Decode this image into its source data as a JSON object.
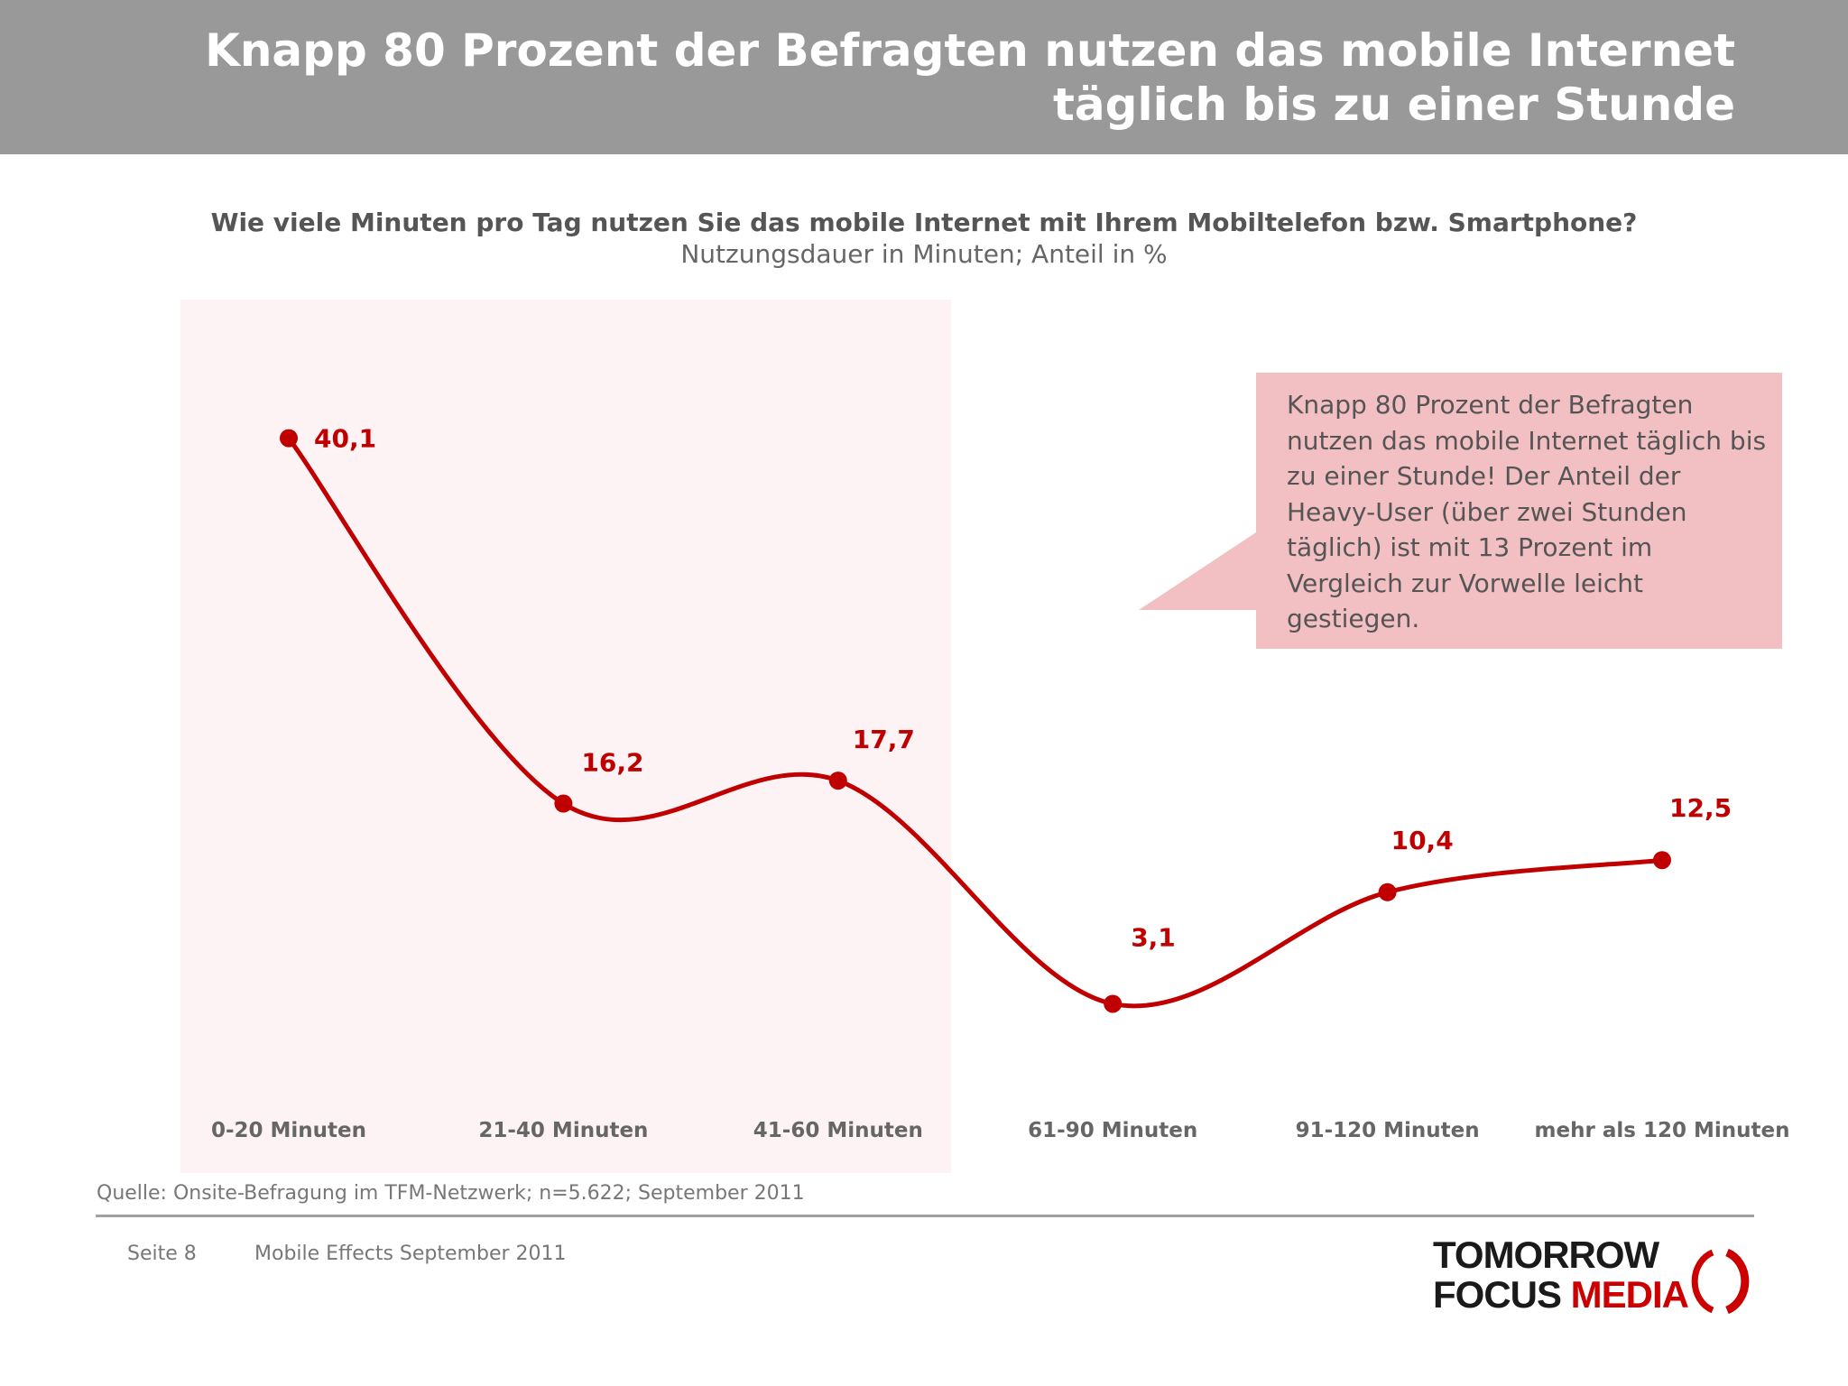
{
  "header": {
    "title_line1": "Knapp 80 Prozent der Befragten nutzen das mobile Internet",
    "title_line2": "täglich bis zu einer Stunde"
  },
  "question": "Wie viele Minuten pro Tag nutzen Sie das mobile Internet mit Ihrem Mobiltelefon bzw. Smartphone?",
  "subtitle": "Nutzungsdauer in Minuten; Anteil in %",
  "chart_data": {
    "type": "line",
    "categories": [
      "0-20 Minuten",
      "21-40 Minuten",
      "41-60 Minuten",
      "61-90 Minuten",
      "91-120 Minuten",
      "mehr als 120 Minuten"
    ],
    "values": [
      40.1,
      16.2,
      17.7,
      3.1,
      10.4,
      12.5
    ],
    "value_labels": [
      "40,1",
      "16,2",
      "17,7",
      "3,1",
      "10,4",
      "12,5"
    ],
    "ylim": [
      0,
      45
    ],
    "highlight_categories": [
      "0-20 Minuten",
      "21-40 Minuten",
      "41-60 Minuten"
    ],
    "line_color": "#c00000",
    "highlight_color": "#fdf3f4",
    "grid": false,
    "legend": false
  },
  "callout": {
    "text": "Knapp 80 Prozent der Befragten nutzen das mobile Internet täglich bis zu einer Stunde! Der Anteil der Heavy-User (über zwei Stunden täglich) ist mit 13 Prozent im Vergleich zur Vorwelle leicht gestiegen.",
    "color": "#f2bfc2"
  },
  "source": "Quelle: Onsite-Befragung im TFM-Netzwerk; n=5.622; September 2011",
  "footer": {
    "page": "Seite 8",
    "title": "Mobile Effects September 2011"
  },
  "logo": {
    "line1": "TOMORROW",
    "line2_word1": "FOCUS",
    "line2_word2": "MEDIA"
  }
}
